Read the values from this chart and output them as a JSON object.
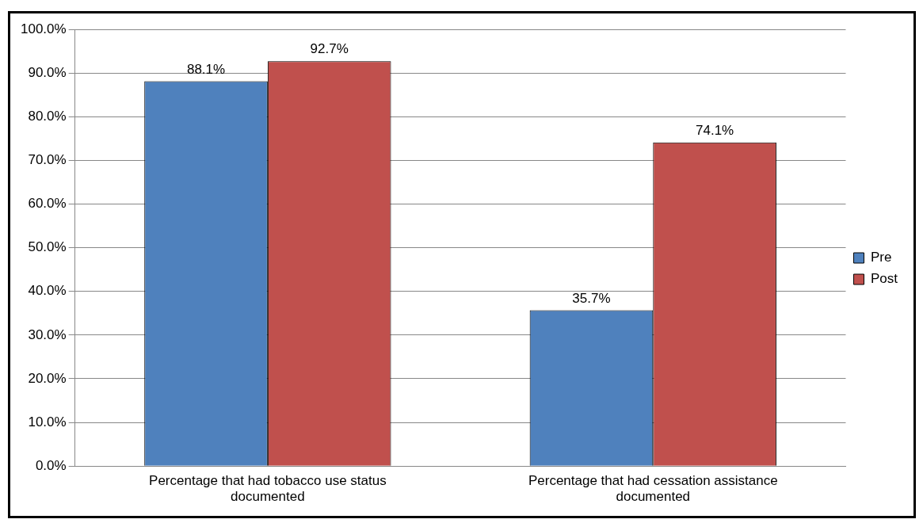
{
  "chart_data": {
    "type": "bar",
    "categories": [
      [
        "Percentage that had tobacco use status",
        "documented"
      ],
      [
        "Percentage that had cessation assistance",
        "documented"
      ]
    ],
    "series": [
      {
        "name": "Pre",
        "color": "#4f81bd",
        "values": [
          88.1,
          35.7
        ]
      },
      {
        "name": "Post",
        "color": "#c0504d",
        "values": [
          92.7,
          74.1
        ]
      }
    ],
    "ylim": [
      0,
      100
    ],
    "yticks": [
      {
        "value": 0,
        "label": "0.0%"
      },
      {
        "value": 10,
        "label": "10.0%"
      },
      {
        "value": 20,
        "label": "20.0%"
      },
      {
        "value": 30,
        "label": "30.0%"
      },
      {
        "value": 40,
        "label": "40.0%"
      },
      {
        "value": 50,
        "label": "50.0%"
      },
      {
        "value": 60,
        "label": "60.0%"
      },
      {
        "value": 70,
        "label": "70.0%"
      },
      {
        "value": 80,
        "label": "80.0%"
      },
      {
        "value": 90,
        "label": "90.0%"
      },
      {
        "value": 100,
        "label": "100.0%"
      }
    ],
    "grid": "y",
    "legend": "right",
    "value_labels": [
      [
        "88.1%",
        "35.7%"
      ],
      [
        "92.7%",
        "74.1%"
      ]
    ]
  }
}
